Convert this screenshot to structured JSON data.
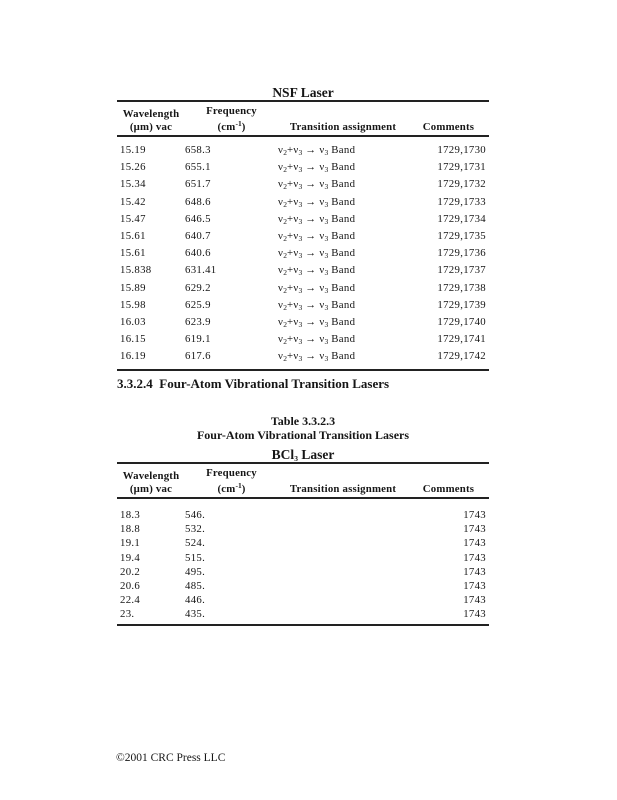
{
  "document": {
    "section_heading": "3.3.2.4  Four-Atom Vibrational Transition Lasers",
    "caption": {
      "line1": "Table 3.3.2.3",
      "line2": "Four-Atom Vibrational Transition Lasers"
    },
    "footer": "©2001 CRC Press LLC",
    "text_color": "#161616",
    "rule_color": "#222222"
  },
  "nsf_table": {
    "title": "NSF Laser",
    "columns": [
      {
        "line1": "Wavelength",
        "line2": "(μm) vac"
      },
      {
        "line1": "Frequency",
        "line2": "(cm^-1^)"
      },
      {
        "line1": "",
        "line2": "Transition assignment"
      },
      {
        "line1": "",
        "line2": "Comments"
      }
    ],
    "rows": [
      [
        "15.19",
        "658.3",
        "ν_2_+ν_3_ → ν_3_ Band",
        "1729,1730"
      ],
      [
        "15.26",
        "655.1",
        "ν_2_+ν_3_ → ν_3_ Band",
        "1729,1731"
      ],
      [
        "15.34",
        "651.7",
        "ν_2_+ν_3_ → ν_3_ Band",
        "1729,1732"
      ],
      [
        "15.42",
        "648.6",
        "ν_2_+ν_3_ → ν_3_ Band",
        "1729,1733"
      ],
      [
        "15.47",
        "646.5",
        "ν_2_+ν_3_ → ν_3_ Band",
        "1729,1734"
      ],
      [
        "15.61",
        "640.7",
        "ν_2_+ν_3_ → ν_3_ Band",
        "1729,1735"
      ],
      [
        "15.61",
        "640.6",
        "ν_2_+ν_3_ → ν_3_ Band",
        "1729,1736"
      ],
      [
        "15.838",
        "631.41",
        "ν_2_+ν_3_ → ν_3_ Band",
        "1729,1737"
      ],
      [
        "15.89",
        "629.2",
        "ν_2_+ν_3_ → ν_3_ Band",
        "1729,1738"
      ],
      [
        "15.98",
        "625.9",
        "ν_2_+ν_3_ → ν_3_ Band",
        "1729,1739"
      ],
      [
        "16.03",
        "623.9",
        "ν_2_+ν_3_ → ν_3_ Band",
        "1729,1740"
      ],
      [
        "16.15",
        "619.1",
        "ν_2_+ν_3_ → ν_3_ Band",
        "1729,1741"
      ],
      [
        "16.19",
        "617.6",
        "ν_2_+ν_3_ → ν_3_ Band",
        "1729,1742"
      ]
    ]
  },
  "bcl3_table": {
    "title": "BCl_3_ Laser",
    "columns": [
      {
        "line1": "Wavelength",
        "line2": "(μm) vac"
      },
      {
        "line1": "Frequency",
        "line2": "(cm^-1^)"
      },
      {
        "line1": "",
        "line2": "Transition assignment"
      },
      {
        "line1": "",
        "line2": "Comments"
      }
    ],
    "rows": [
      [
        "18.3",
        "546.",
        "",
        "1743"
      ],
      [
        "18.8",
        "532.",
        "",
        "1743"
      ],
      [
        "19.1",
        "524.",
        "",
        "1743"
      ],
      [
        "19.4",
        "515.",
        "",
        "1743"
      ],
      [
        "20.2",
        "495.",
        "",
        "1743"
      ],
      [
        "20.6",
        "485.",
        "",
        "1743"
      ],
      [
        "22.4",
        "446.",
        "",
        "1743"
      ],
      [
        "23.",
        "435.",
        "",
        "1743"
      ]
    ]
  }
}
